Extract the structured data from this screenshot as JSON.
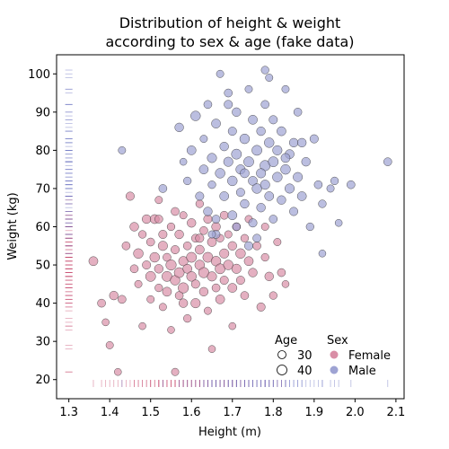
{
  "chart_data": {
    "type": "scatter",
    "title_line1": "Distribution of height & weight",
    "title_line2": "according to sex & age (fake data)",
    "xlabel": "Height (m)",
    "ylabel": "Weight (kg)",
    "xlim": [
      1.27,
      2.12
    ],
    "ylim": [
      15,
      105
    ],
    "xticks": [
      "1.3",
      "1.4",
      "1.5",
      "1.6",
      "1.7",
      "1.8",
      "1.9",
      "2.0",
      "2.1"
    ],
    "yticks": [
      "20",
      "30",
      "40",
      "50",
      "60",
      "70",
      "80",
      "90",
      "100"
    ],
    "grid": false,
    "legend_placement": "lower-right",
    "legend": {
      "age_title": "Age",
      "age_30": "30",
      "age_40": "40",
      "sex_title": "Sex",
      "female": "Female",
      "male": "Male"
    },
    "colors": {
      "female": "#d98ea6",
      "male": "#9ea3d3",
      "female_rug": "#c0365e",
      "male_rug": "#5c64bb"
    },
    "series": [
      {
        "name": "Female",
        "points": [
          [
            1.36,
            51,
            36
          ],
          [
            1.38,
            40,
            33
          ],
          [
            1.39,
            35,
            30
          ],
          [
            1.4,
            29,
            31
          ],
          [
            1.41,
            42,
            35
          ],
          [
            1.42,
            22,
            30
          ],
          [
            1.43,
            41,
            33
          ],
          [
            1.44,
            55,
            33
          ],
          [
            1.45,
            68,
            34
          ],
          [
            1.46,
            60,
            35
          ],
          [
            1.46,
            49,
            33
          ],
          [
            1.47,
            53,
            38
          ],
          [
            1.47,
            45,
            31
          ],
          [
            1.48,
            34,
            30
          ],
          [
            1.48,
            58,
            32
          ],
          [
            1.49,
            62,
            35
          ],
          [
            1.49,
            50,
            34
          ],
          [
            1.5,
            47,
            39
          ],
          [
            1.5,
            56,
            33
          ],
          [
            1.5,
            41,
            31
          ],
          [
            1.51,
            62,
            36
          ],
          [
            1.51,
            52,
            38
          ],
          [
            1.52,
            44,
            32
          ],
          [
            1.52,
            49,
            35
          ],
          [
            1.52,
            62,
            33
          ],
          [
            1.53,
            55,
            37
          ],
          [
            1.53,
            39,
            31
          ],
          [
            1.53,
            58,
            34
          ],
          [
            1.54,
            47,
            39
          ],
          [
            1.54,
            52,
            33
          ],
          [
            1.54,
            43,
            36
          ],
          [
            1.55,
            50,
            40
          ],
          [
            1.55,
            60,
            32
          ],
          [
            1.55,
            33,
            30
          ],
          [
            1.56,
            46,
            38
          ],
          [
            1.56,
            54,
            34
          ],
          [
            1.56,
            22,
            31
          ],
          [
            1.57,
            48,
            39
          ],
          [
            1.57,
            58,
            35
          ],
          [
            1.57,
            42,
            33
          ],
          [
            1.58,
            51,
            37
          ],
          [
            1.58,
            44,
            40
          ],
          [
            1.58,
            63,
            31
          ],
          [
            1.59,
            49,
            36
          ],
          [
            1.59,
            55,
            33
          ],
          [
            1.59,
            36,
            32
          ],
          [
            1.6,
            47,
            38
          ],
          [
            1.6,
            61,
            35
          ],
          [
            1.6,
            52,
            39
          ],
          [
            1.61,
            45,
            34
          ],
          [
            1.61,
            57,
            33
          ],
          [
            1.61,
            40,
            37
          ],
          [
            1.62,
            50,
            38
          ],
          [
            1.62,
            66,
            32
          ],
          [
            1.62,
            54,
            36
          ],
          [
            1.63,
            48,
            40
          ],
          [
            1.63,
            59,
            33
          ],
          [
            1.63,
            43,
            35
          ],
          [
            1.64,
            52,
            39
          ],
          [
            1.64,
            38,
            31
          ],
          [
            1.64,
            62,
            34
          ],
          [
            1.65,
            47,
            37
          ],
          [
            1.65,
            56,
            36
          ],
          [
            1.65,
            28,
            30
          ],
          [
            1.66,
            51,
            38
          ],
          [
            1.66,
            44,
            33
          ],
          [
            1.66,
            60,
            35
          ],
          [
            1.67,
            49,
            39
          ],
          [
            1.67,
            57,
            32
          ],
          [
            1.67,
            41,
            36
          ],
          [
            1.68,
            53,
            37
          ],
          [
            1.68,
            46,
            34
          ],
          [
            1.68,
            63,
            33
          ],
          [
            1.69,
            50,
            38
          ],
          [
            1.69,
            58,
            31
          ],
          [
            1.7,
            44,
            36
          ],
          [
            1.7,
            55,
            35
          ],
          [
            1.7,
            34,
            30
          ],
          [
            1.71,
            49,
            37
          ],
          [
            1.71,
            60,
            33
          ],
          [
            1.72,
            46,
            34
          ],
          [
            1.72,
            53,
            38
          ],
          [
            1.73,
            57,
            32
          ],
          [
            1.73,
            42,
            33
          ],
          [
            1.74,
            51,
            36
          ],
          [
            1.74,
            62,
            31
          ],
          [
            1.75,
            48,
            35
          ],
          [
            1.76,
            55,
            33
          ],
          [
            1.77,
            39,
            34
          ],
          [
            1.78,
            52,
            32
          ],
          [
            1.79,
            47,
            35
          ],
          [
            1.8,
            42,
            32
          ],
          [
            1.81,
            56,
            31
          ],
          [
            1.82,
            48,
            33
          ],
          [
            1.83,
            45,
            30
          ],
          [
            1.78,
            60,
            31
          ],
          [
            1.56,
            64,
            33
          ],
          [
            1.62,
            57,
            34
          ],
          [
            1.58,
            40,
            35
          ],
          [
            1.52,
            67,
            31
          ]
        ]
      },
      {
        "name": "Male",
        "points": [
          [
            1.43,
            80,
            31
          ],
          [
            1.53,
            70,
            33
          ],
          [
            1.57,
            86,
            35
          ],
          [
            1.58,
            77,
            30
          ],
          [
            1.59,
            72,
            32
          ],
          [
            1.6,
            80,
            36
          ],
          [
            1.61,
            89,
            38
          ],
          [
            1.62,
            68,
            34
          ],
          [
            1.63,
            83,
            31
          ],
          [
            1.63,
            75,
            36
          ],
          [
            1.64,
            92,
            33
          ],
          [
            1.64,
            64,
            35
          ],
          [
            1.65,
            78,
            37
          ],
          [
            1.65,
            71,
            32
          ],
          [
            1.66,
            87,
            36
          ],
          [
            1.66,
            62,
            33
          ],
          [
            1.67,
            100,
            31
          ],
          [
            1.67,
            74,
            38
          ],
          [
            1.68,
            81,
            35
          ],
          [
            1.68,
            68,
            36
          ],
          [
            1.69,
            95,
            33
          ],
          [
            1.69,
            77,
            37
          ],
          [
            1.7,
            72,
            38
          ],
          [
            1.7,
            85,
            34
          ],
          [
            1.7,
            63,
            36
          ],
          [
            1.71,
            90,
            35
          ],
          [
            1.71,
            79,
            39
          ],
          [
            1.72,
            75,
            37
          ],
          [
            1.72,
            69,
            34
          ],
          [
            1.73,
            83,
            38
          ],
          [
            1.73,
            66,
            35
          ],
          [
            1.74,
            96,
            31
          ],
          [
            1.74,
            77,
            39
          ],
          [
            1.75,
            72,
            36
          ],
          [
            1.75,
            88,
            36
          ],
          [
            1.75,
            61,
            34
          ],
          [
            1.76,
            80,
            39
          ],
          [
            1.76,
            70,
            38
          ],
          [
            1.77,
            85,
            35
          ],
          [
            1.77,
            65,
            35
          ],
          [
            1.78,
            76,
            40
          ],
          [
            1.78,
            92,
            33
          ],
          [
            1.78,
            71,
            37
          ],
          [
            1.79,
            82,
            38
          ],
          [
            1.79,
            68,
            36
          ],
          [
            1.8,
            77,
            39
          ],
          [
            1.8,
            88,
            34
          ],
          [
            1.8,
            62,
            33
          ],
          [
            1.81,
            73,
            38
          ],
          [
            1.81,
            80,
            37
          ],
          [
            1.82,
            67,
            35
          ],
          [
            1.82,
            85,
            36
          ],
          [
            1.83,
            75,
            38
          ],
          [
            1.83,
            96,
            31
          ],
          [
            1.84,
            70,
            37
          ],
          [
            1.84,
            79,
            36
          ],
          [
            1.85,
            64,
            34
          ],
          [
            1.85,
            82,
            35
          ],
          [
            1.86,
            73,
            37
          ],
          [
            1.86,
            90,
            33
          ],
          [
            1.87,
            68,
            36
          ],
          [
            1.88,
            77,
            35
          ],
          [
            1.89,
            60,
            32
          ],
          [
            1.9,
            83,
            34
          ],
          [
            1.91,
            71,
            33
          ],
          [
            1.92,
            66,
            32
          ],
          [
            1.94,
            70,
            31
          ],
          [
            1.95,
            72,
            32
          ],
          [
            1.96,
            61,
            30
          ],
          [
            1.99,
            71,
            33
          ],
          [
            2.08,
            77,
            33
          ],
          [
            1.92,
            53,
            30
          ],
          [
            1.71,
            60,
            32
          ],
          [
            1.66,
            58,
            33
          ],
          [
            1.74,
            55,
            34
          ],
          [
            1.76,
            57,
            33
          ],
          [
            1.69,
            92,
            34
          ],
          [
            1.78,
            101,
            32
          ],
          [
            1.65,
            58,
            31
          ],
          [
            1.79,
            99,
            31
          ],
          [
            1.87,
            82,
            35
          ],
          [
            1.83,
            78,
            36
          ],
          [
            1.77,
            74,
            37
          ],
          [
            1.73,
            74,
            36
          ]
        ]
      }
    ],
    "annotations": []
  }
}
